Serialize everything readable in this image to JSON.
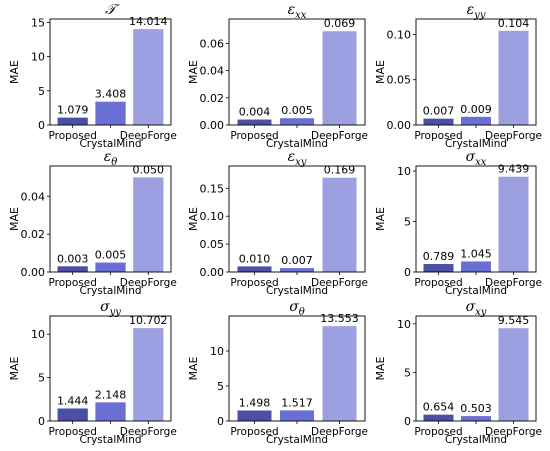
{
  "chart_data": [
    {
      "type": "bar",
      "title": "𝒯",
      "ylabel": "MAE",
      "categories": [
        "Proposed",
        "CrystalMind",
        "DeepForge"
      ],
      "values": [
        1.079,
        3.408,
        14.014
      ],
      "value_labels": [
        "1.079",
        "3.408",
        "14.014"
      ],
      "ylim": [
        0,
        15.5
      ],
      "yticks": [
        0,
        5,
        10,
        15
      ],
      "ytick_labels": [
        "0",
        "5",
        "10",
        "15"
      ]
    },
    {
      "type": "bar",
      "title": "εxx",
      "ylabel": "MAE",
      "categories": [
        "Proposed",
        "CrystalMind",
        "DeepForge"
      ],
      "values": [
        0.004,
        0.005,
        0.069
      ],
      "value_labels": [
        "0.004",
        "0.005",
        "0.069"
      ],
      "ylim": [
        0,
        0.078
      ],
      "yticks": [
        0,
        0.02,
        0.04,
        0.06
      ],
      "ytick_labels": [
        "0.00",
        "0.02",
        "0.04",
        "0.06"
      ]
    },
    {
      "type": "bar",
      "title": "εyy",
      "ylabel": "MAE",
      "categories": [
        "Proposed",
        "CrystalMind",
        "DeepForge"
      ],
      "values": [
        0.007,
        0.009,
        0.104
      ],
      "value_labels": [
        "0.007",
        "0.009",
        "0.104"
      ],
      "ylim": [
        0,
        0.117
      ],
      "yticks": [
        0,
        0.05,
        0.1
      ],
      "ytick_labels": [
        "0.00",
        "0.05",
        "0.10"
      ]
    },
    {
      "type": "bar",
      "title": "εθ",
      "ylabel": "MAE",
      "categories": [
        "Proposed",
        "CrystalMind",
        "DeepForge"
      ],
      "values": [
        0.003,
        0.005,
        0.05
      ],
      "value_labels": [
        "0.003",
        "0.005",
        "0.050"
      ],
      "ylim": [
        0,
        0.056
      ],
      "yticks": [
        0,
        0.02,
        0.04
      ],
      "ytick_labels": [
        "0.00",
        "0.02",
        "0.04"
      ]
    },
    {
      "type": "bar",
      "title": "εxy",
      "ylabel": "MAE",
      "categories": [
        "Proposed",
        "CrystalMind",
        "DeepForge"
      ],
      "values": [
        0.01,
        0.007,
        0.169
      ],
      "value_labels": [
        "0.010",
        "0.007",
        "0.169"
      ],
      "ylim": [
        0,
        0.19
      ],
      "yticks": [
        0,
        0.05,
        0.1,
        0.15
      ],
      "ytick_labels": [
        "0.00",
        "0.05",
        "0.10",
        "0.15"
      ]
    },
    {
      "type": "bar",
      "title": "σxx",
      "ylabel": "MAE",
      "categories": [
        "Proposed",
        "CrystalMind",
        "DeepForge"
      ],
      "values": [
        0.789,
        1.045,
        9.439
      ],
      "value_labels": [
        "0.789",
        "1.045",
        "9.439"
      ],
      "ylim": [
        0,
        10.5
      ],
      "yticks": [
        0,
        5,
        10
      ],
      "ytick_labels": [
        "0",
        "5",
        "10"
      ]
    },
    {
      "type": "bar",
      "title": "σyy",
      "ylabel": "MAE",
      "categories": [
        "Proposed",
        "CrystalMind",
        "DeepForge"
      ],
      "values": [
        1.444,
        2.148,
        10.702
      ],
      "value_labels": [
        "1.444",
        "2.148",
        "10.702"
      ],
      "ylim": [
        0,
        12.1
      ],
      "yticks": [
        0,
        5,
        10
      ],
      "ytick_labels": [
        "0",
        "5",
        "10"
      ]
    },
    {
      "type": "bar",
      "title": "σθ",
      "ylabel": "MAE",
      "categories": [
        "Proposed",
        "CrystalMind",
        "DeepForge"
      ],
      "values": [
        1.498,
        1.517,
        13.553
      ],
      "value_labels": [
        "1.498",
        "1.517",
        "13.553"
      ],
      "ylim": [
        0,
        15.0
      ],
      "yticks": [
        0,
        5,
        10
      ],
      "ytick_labels": [
        "0",
        "5",
        "10"
      ]
    },
    {
      "type": "bar",
      "title": "σxy",
      "ylabel": "MAE",
      "categories": [
        "Proposed",
        "CrystalMind",
        "DeepForge"
      ],
      "values": [
        0.654,
        0.503,
        9.545
      ],
      "value_labels": [
        "0.654",
        "0.503",
        "9.545"
      ],
      "ylim": [
        0,
        10.8
      ],
      "yticks": [
        0,
        5,
        10
      ],
      "ytick_labels": [
        "0",
        "5",
        "10"
      ]
    }
  ],
  "bar_colors": [
    "#4b4fa6",
    "#6a6fd4",
    "#9c9fe0"
  ],
  "grid": false,
  "legend": "none"
}
